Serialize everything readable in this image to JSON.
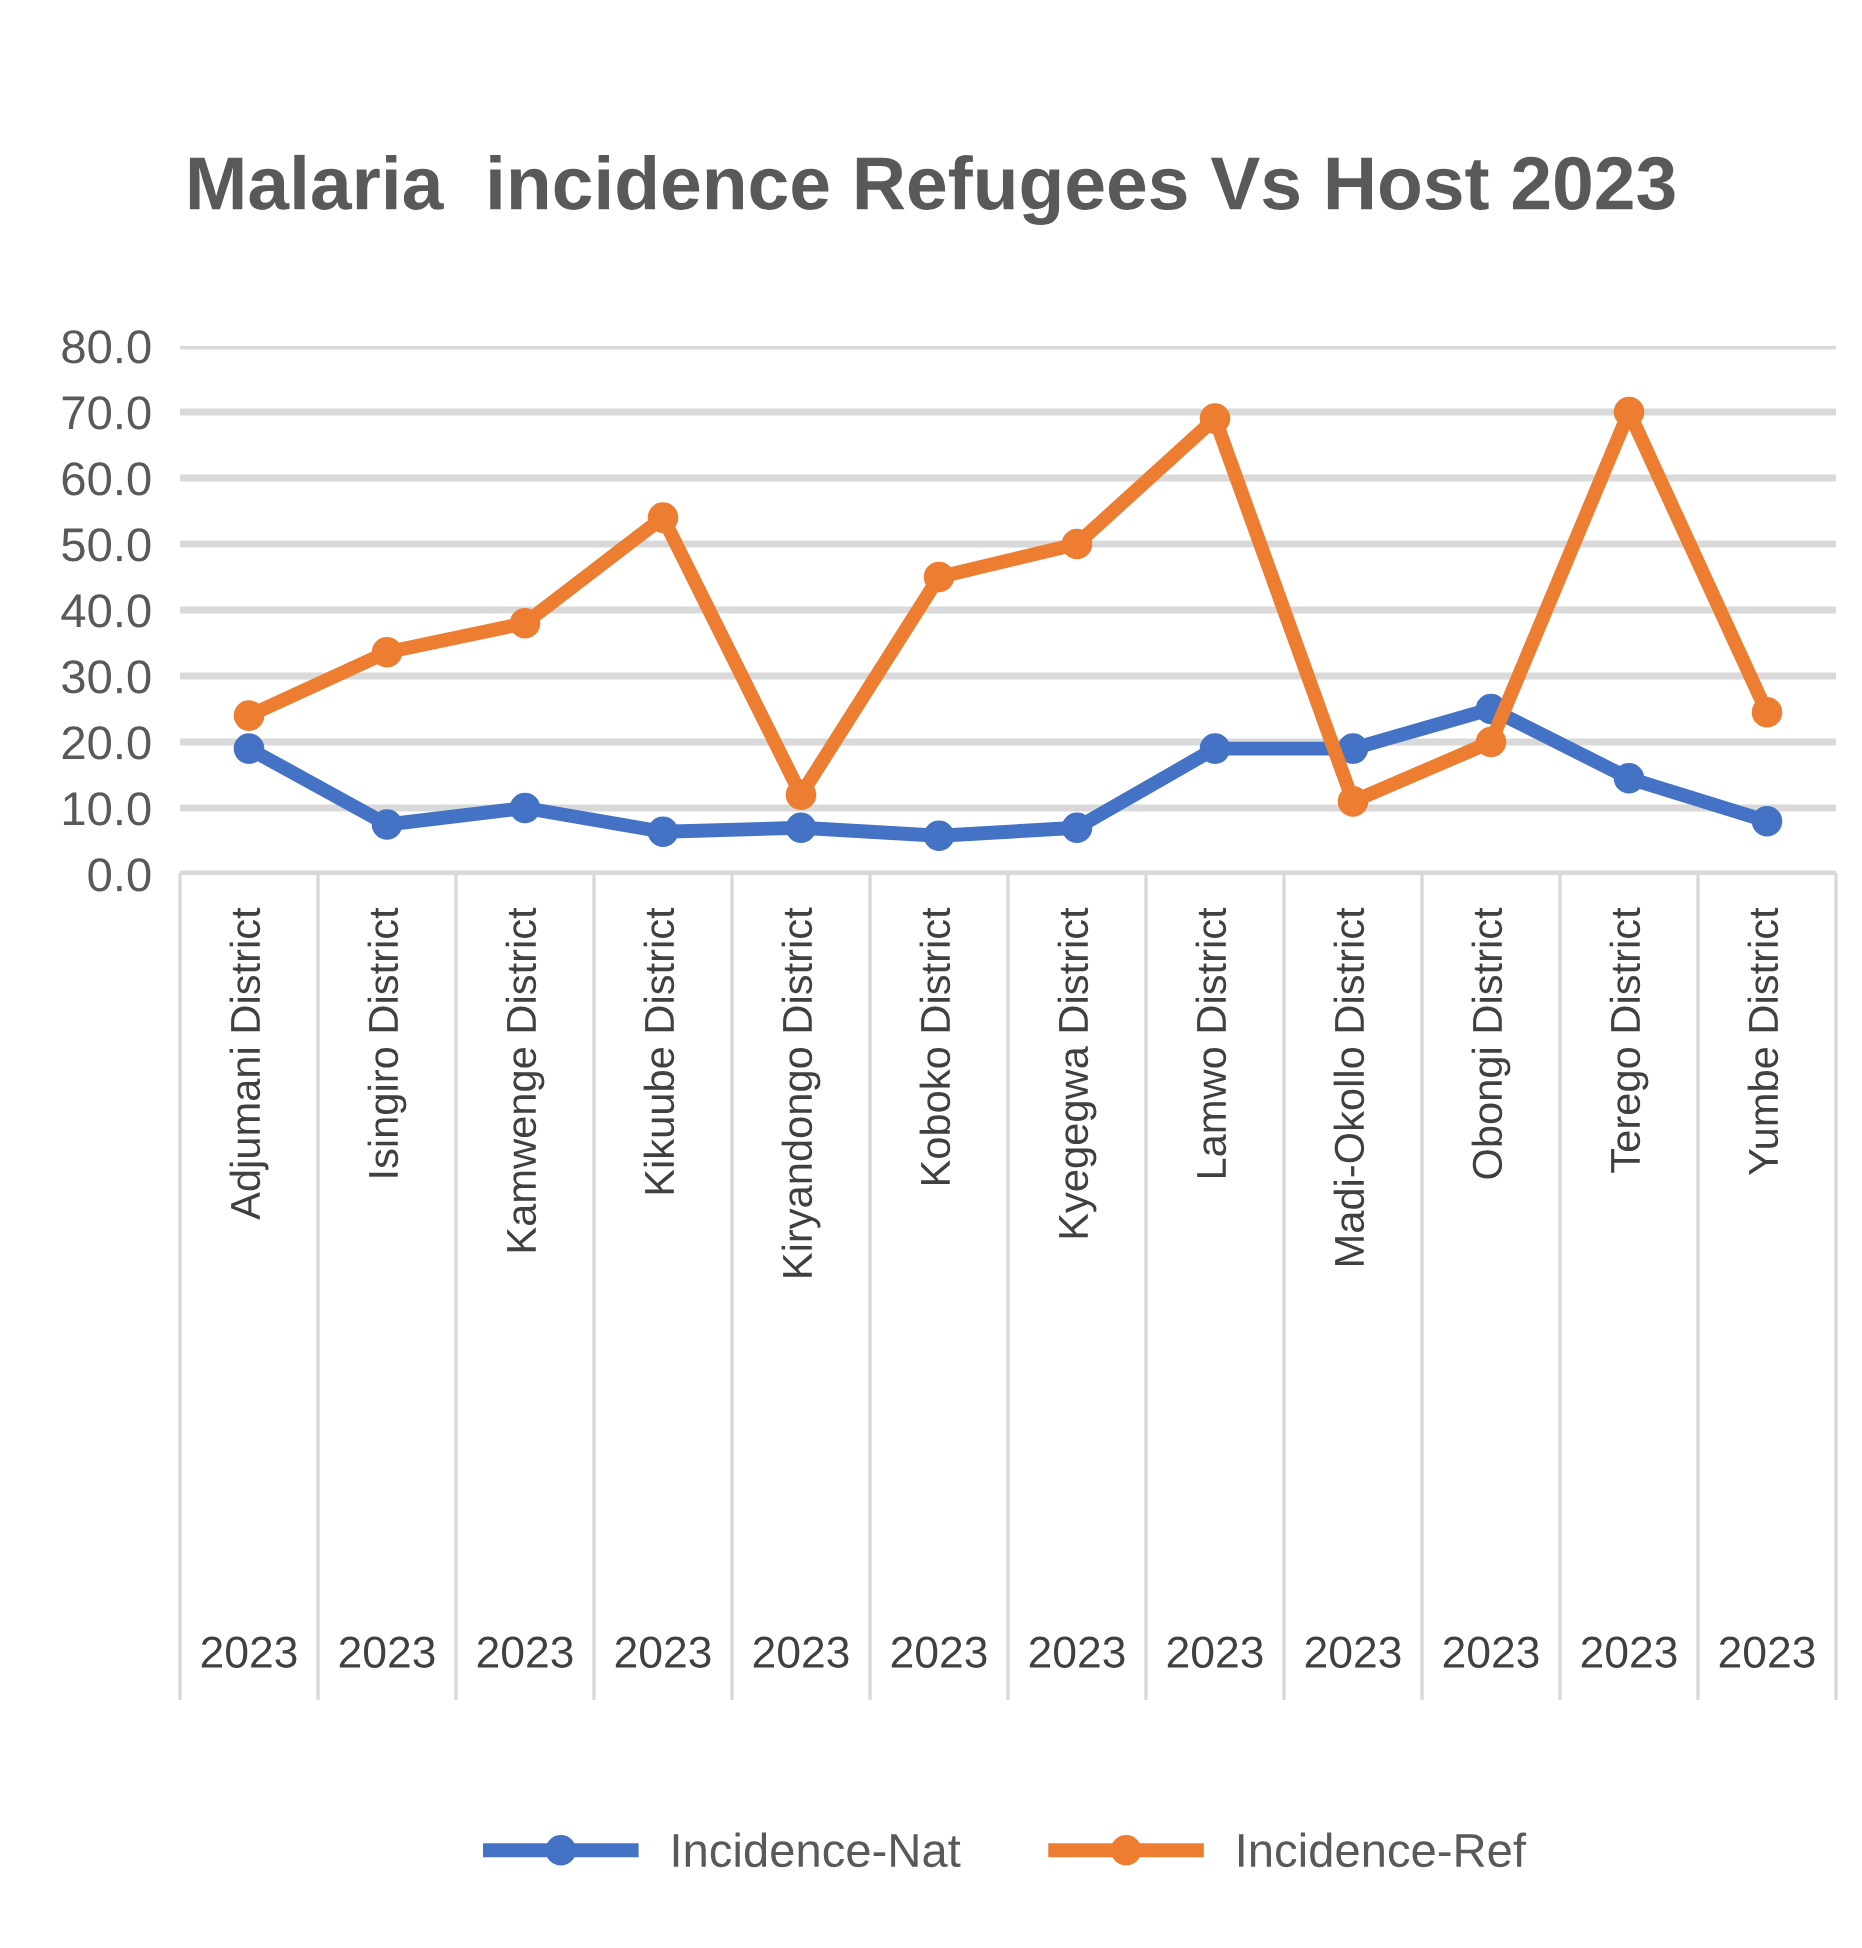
{
  "chart_data": {
    "type": "line",
    "title": "Malaria  incidence Refugees Vs Host 2023",
    "categories": [
      "Adjumani District\n2023",
      "Isingiro District\n2023",
      "Kamwenge District\n2023",
      "Kikuube District\n2023",
      "Kiryandongo District\n2023",
      "Koboko District\n2023",
      "Kyegegwa District\n2023",
      "Lamwo District\n2023",
      "Madi-Okollo District\n2023",
      "Obongi District\n2023",
      "Terego District\n2023",
      "Yumbe District\n2023"
    ],
    "series": [
      {
        "name": "Incidence-Nat",
        "color": "#4472c4",
        "values": [
          19.0,
          7.5,
          10.0,
          6.4,
          7.0,
          5.8,
          7.0,
          19.0,
          19.0,
          25.0,
          14.5,
          8.0
        ]
      },
      {
        "name": "Incidence-Ref",
        "color": "#ed7d31",
        "values": [
          24.0,
          33.6,
          38.0,
          54.0,
          12.0,
          45.0,
          50.0,
          69.0,
          11.0,
          20.0,
          70.0,
          24.5
        ]
      }
    ],
    "ylim": [
      0,
      80
    ],
    "yticks": [
      {
        "value": 0,
        "label": "0.0"
      },
      {
        "value": 10,
        "label": "10.0"
      },
      {
        "value": 20,
        "label": "20.0"
      },
      {
        "value": 30,
        "label": "30.0"
      },
      {
        "value": 40,
        "label": "40.0"
      },
      {
        "value": 50,
        "label": "50.0"
      },
      {
        "value": 60,
        "label": "60.0"
      },
      {
        "value": 70,
        "label": "70.0"
      },
      {
        "value": 80,
        "label": "80.0"
      }
    ],
    "grid": "y",
    "legend": "bottom",
    "marker": "circle",
    "line_style": "solid"
  }
}
